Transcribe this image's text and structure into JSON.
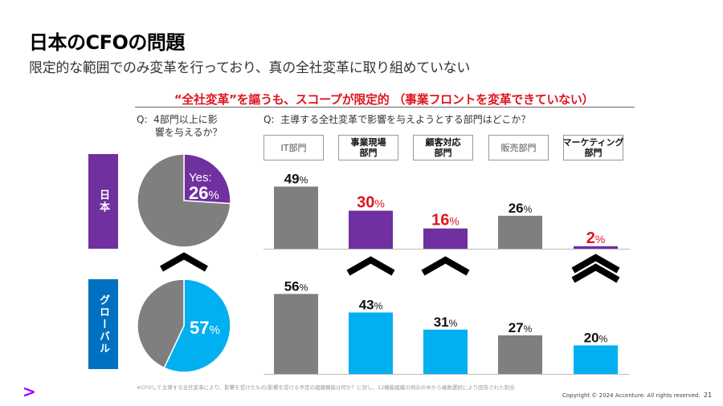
{
  "header": {
    "title": "日本のCFOの問題",
    "subtitle": "限定的な範囲でのみ変革を行っており、真の全社変革に取り組めていない"
  },
  "headline": "“全社変革”を謳うも、スコープが限定的 （事業フロントを変革できていない）",
  "questions": {
    "q1": "Q: 4部門以上に影\n　 響を与えるか？",
    "q1_line1": "Q:  4部門以上に影",
    "q1_line2": "      響を与えるか？",
    "q2": "Q:  主導する全社変革で影響を与えようとする部門はどこか？"
  },
  "regions": {
    "japan": "日本",
    "global": "グローバル"
  },
  "categories": [
    {
      "line1": "IT部門",
      "line2": "",
      "bold": false
    },
    {
      "line1": "事業現場",
      "line2": "部門",
      "bold": true
    },
    {
      "line1": "顧客対応",
      "line2": "部門",
      "bold": true
    },
    {
      "line1": "販売部門",
      "line2": "",
      "bold": false
    },
    {
      "line1": "マーケティング",
      "line2": "部門",
      "bold": true
    }
  ],
  "colors": {
    "gray": "#7f7f7f",
    "japan": "#7030a0",
    "global": "#00b0f0",
    "highlight_text": "#e0151f",
    "text": "#111111"
  },
  "chart_data": [
    {
      "type": "pie",
      "title": "日本: 4部門以上に影響を与えるか？",
      "slices": [
        {
          "label": "Yes",
          "value": 26,
          "color": "#7030a0"
        },
        {
          "label": "No",
          "value": 74,
          "color": "#7f7f7f"
        }
      ],
      "data_label": {
        "prefix": "Yes:",
        "value": "26",
        "unit": "%"
      }
    },
    {
      "type": "pie",
      "title": "グローバル: 4部門以上に影響を与えるか？",
      "slices": [
        {
          "label": "Yes",
          "value": 57,
          "color": "#00b0f0"
        },
        {
          "label": "No",
          "value": 43,
          "color": "#7f7f7f"
        }
      ],
      "data_label": {
        "prefix": "",
        "value": "57",
        "unit": "%"
      }
    },
    {
      "type": "bar",
      "title": "日本: 主導する全社変革で影響を与えようとする部門",
      "categories": [
        "IT部門",
        "事業現場部門",
        "顧客対応部門",
        "販売部門",
        "マーケティング部門"
      ],
      "values": [
        49,
        30,
        16,
        26,
        2
      ],
      "bar_colors": [
        "#7f7f7f",
        "#7030a0",
        "#7030a0",
        "#7f7f7f",
        "#7030a0"
      ],
      "label_colors": [
        "#111111",
        "#e0151f",
        "#e0151f",
        "#111111",
        "#e0151f"
      ],
      "unit": "%",
      "ylim": [
        0,
        60
      ]
    },
    {
      "type": "bar",
      "title": "グローバル: 主導する全社変革で影響を与えようとする部門",
      "categories": [
        "IT部門",
        "事業現場部門",
        "顧客対応部門",
        "販売部門",
        "マーケティング部門"
      ],
      "values": [
        56,
        43,
        31,
        27,
        20
      ],
      "bar_colors": [
        "#7f7f7f",
        "#00b0f0",
        "#00b0f0",
        "#7f7f7f",
        "#00b0f0"
      ],
      "label_colors": [
        "#111111",
        "#111111",
        "#111111",
        "#111111",
        "#111111"
      ],
      "unit": "%",
      "ylim": [
        0,
        60
      ]
    }
  ],
  "gap_indicators": {
    "pie": "single-chevron-up",
    "bars": [
      "none",
      "single-chevron-up",
      "single-chevron-up",
      "none",
      "double-chevron-up"
    ]
  },
  "footer": {
    "footnote": "※CFOして主導する全社変革により、影響を受けたもの/影響を受ける予定の組織機能は何か？に対し、12機能組織の例示の中から複数選択により回答された割合",
    "copyright": "Copyright © 2024 Accenture. All rights reserved.",
    "page_number": "21",
    "logo": ">"
  }
}
